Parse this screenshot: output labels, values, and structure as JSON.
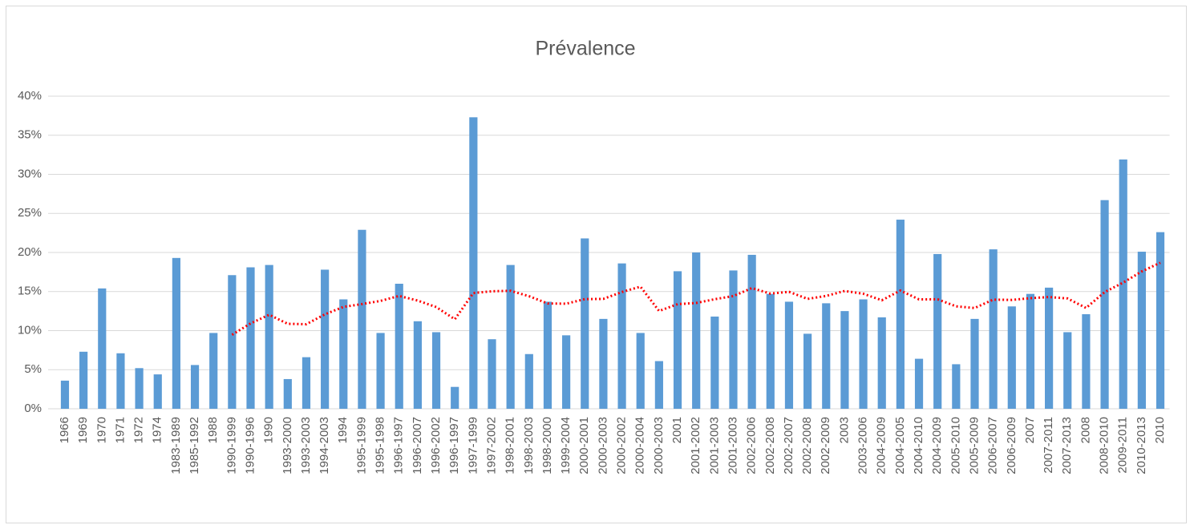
{
  "chart_data": {
    "type": "bar",
    "title": "Prévalence",
    "categories": [
      "1966",
      "1969",
      "1970",
      "1971",
      "1972",
      "1974",
      "1983-1989",
      "1985-1992",
      "1988",
      "1990-1999",
      "1990-1996",
      "1990",
      "1993-2000",
      "1993-2003",
      "1994-2003",
      "1994",
      "1995-1999",
      "1995-1998",
      "1996-1997",
      "1996-2007",
      "1996-2002",
      "1996-1997",
      "1997-1999",
      "1997-2002",
      "1998-2001",
      "1998-2003",
      "1998-2000",
      "1999-2004",
      "2000-2001",
      "2000-2003",
      "2000-2002",
      "2000-2004",
      "2000-2003",
      "2001",
      "2001-2002",
      "2001-2003",
      "2001-2003",
      "2002-2006",
      "2002-2008",
      "2002-2007",
      "2002-2008",
      "2002-2009",
      "2003",
      "2003-2006",
      "2004-2009",
      "2004-2005",
      "2004-2010",
      "2004-2009",
      "2005-2010",
      "2005-2009",
      "2006-2007",
      "2006-2009",
      "2007",
      "2007-2011",
      "2007-2013",
      "2008",
      "2008-2010",
      "2009-2011",
      "2010-2013",
      "2010"
    ],
    "values": [
      3.6,
      7.3,
      15.4,
      7.1,
      5.2,
      4.4,
      19.3,
      5.6,
      9.7,
      17.1,
      18.1,
      18.4,
      3.8,
      6.6,
      17.8,
      14.0,
      22.9,
      9.7,
      16.0,
      11.2,
      9.8,
      2.8,
      37.3,
      8.9,
      18.4,
      7.0,
      13.7,
      9.4,
      21.8,
      11.5,
      18.6,
      9.7,
      6.1,
      17.6,
      20.0,
      11.8,
      17.7,
      19.7,
      14.7,
      13.7,
      9.6,
      13.5,
      12.5,
      14.0,
      11.7,
      24.2,
      6.4,
      19.8,
      5.7,
      11.5,
      20.4,
      13.1,
      14.7,
      15.5,
      9.8,
      12.1,
      26.7,
      31.9,
      20.1,
      22.6
    ],
    "color": "#5b9bd5",
    "trendline": {
      "type": "moving_average",
      "period": 10,
      "color": "#ff0000"
    },
    "ylim": [
      0,
      40
    ],
    "yticks": [
      {
        "value": 0,
        "label": "0%"
      },
      {
        "value": 5,
        "label": "5%"
      },
      {
        "value": 10,
        "label": "10%"
      },
      {
        "value": 15,
        "label": "15%"
      },
      {
        "value": 20,
        "label": "20%"
      },
      {
        "value": 25,
        "label": "25%"
      },
      {
        "value": 30,
        "label": "30%"
      },
      {
        "value": 35,
        "label": "35%"
      },
      {
        "value": 40,
        "label": "40%"
      }
    ],
    "grid": true
  }
}
